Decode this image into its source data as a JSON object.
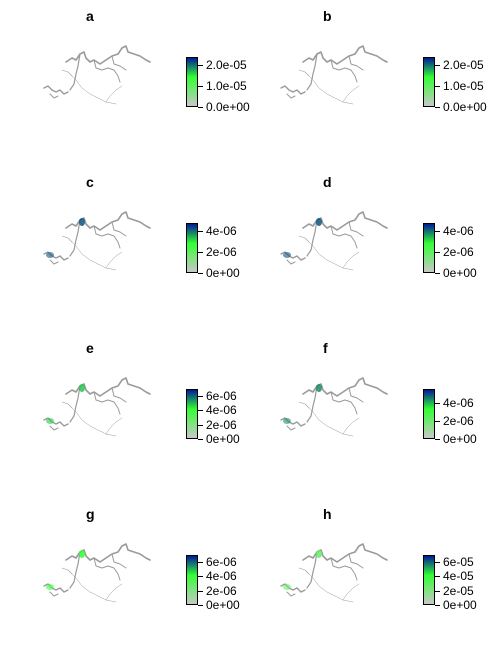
{
  "figure": {
    "colors": {
      "low": "#c8c8c8",
      "mid": "#33ff33",
      "high": "#001a99",
      "map": "#9a9a9a"
    },
    "icons": {
      "map": "river-network-map-icon"
    }
  },
  "chart_data": [
    {
      "type": "heatmap",
      "panel": "a",
      "colorbar_ticks": [
        "0.0e+00",
        "1.0e-05",
        "2.0e-05"
      ],
      "colorbar_range": [
        0,
        2.4e-05
      ],
      "hotspot_level": 0.0
    },
    {
      "type": "heatmap",
      "panel": "b",
      "colorbar_ticks": [
        "0.0e+00",
        "1.0e-05",
        "2.0e-05"
      ],
      "colorbar_range": [
        0,
        2.4e-05
      ],
      "hotspot_level": 0.0
    },
    {
      "type": "heatmap",
      "panel": "c",
      "colorbar_ticks": [
        "0e+00",
        "2e-06",
        "4e-06"
      ],
      "colorbar_range": [
        0,
        4.8e-06
      ],
      "hotspot_level": 0.9
    },
    {
      "type": "heatmap",
      "panel": "d",
      "colorbar_ticks": [
        "0e+00",
        "2e-06",
        "4e-06"
      ],
      "colorbar_range": [
        0,
        4.8e-06
      ],
      "hotspot_level": 0.9
    },
    {
      "type": "heatmap",
      "panel": "e",
      "colorbar_ticks": [
        "0e+00",
        "2e-06",
        "4e-06",
        "6e-06"
      ],
      "colorbar_range": [
        0,
        7e-06
      ],
      "hotspot_level": 0.7
    },
    {
      "type": "heatmap",
      "panel": "f",
      "colorbar_ticks": [
        "0e+00",
        "2e-06",
        "4e-06"
      ],
      "colorbar_range": [
        0,
        5.5e-06
      ],
      "hotspot_level": 0.8
    },
    {
      "type": "heatmap",
      "panel": "g",
      "colorbar_ticks": [
        "0e+00",
        "2e-06",
        "4e-06",
        "6e-06"
      ],
      "colorbar_range": [
        0,
        7e-06
      ],
      "hotspot_level": 0.6
    },
    {
      "type": "heatmap",
      "panel": "h",
      "colorbar_ticks": [
        "0e+00",
        "2e-05",
        "4e-05",
        "6e-05"
      ],
      "colorbar_range": [
        0,
        7e-05
      ],
      "hotspot_level": 0.4
    }
  ]
}
